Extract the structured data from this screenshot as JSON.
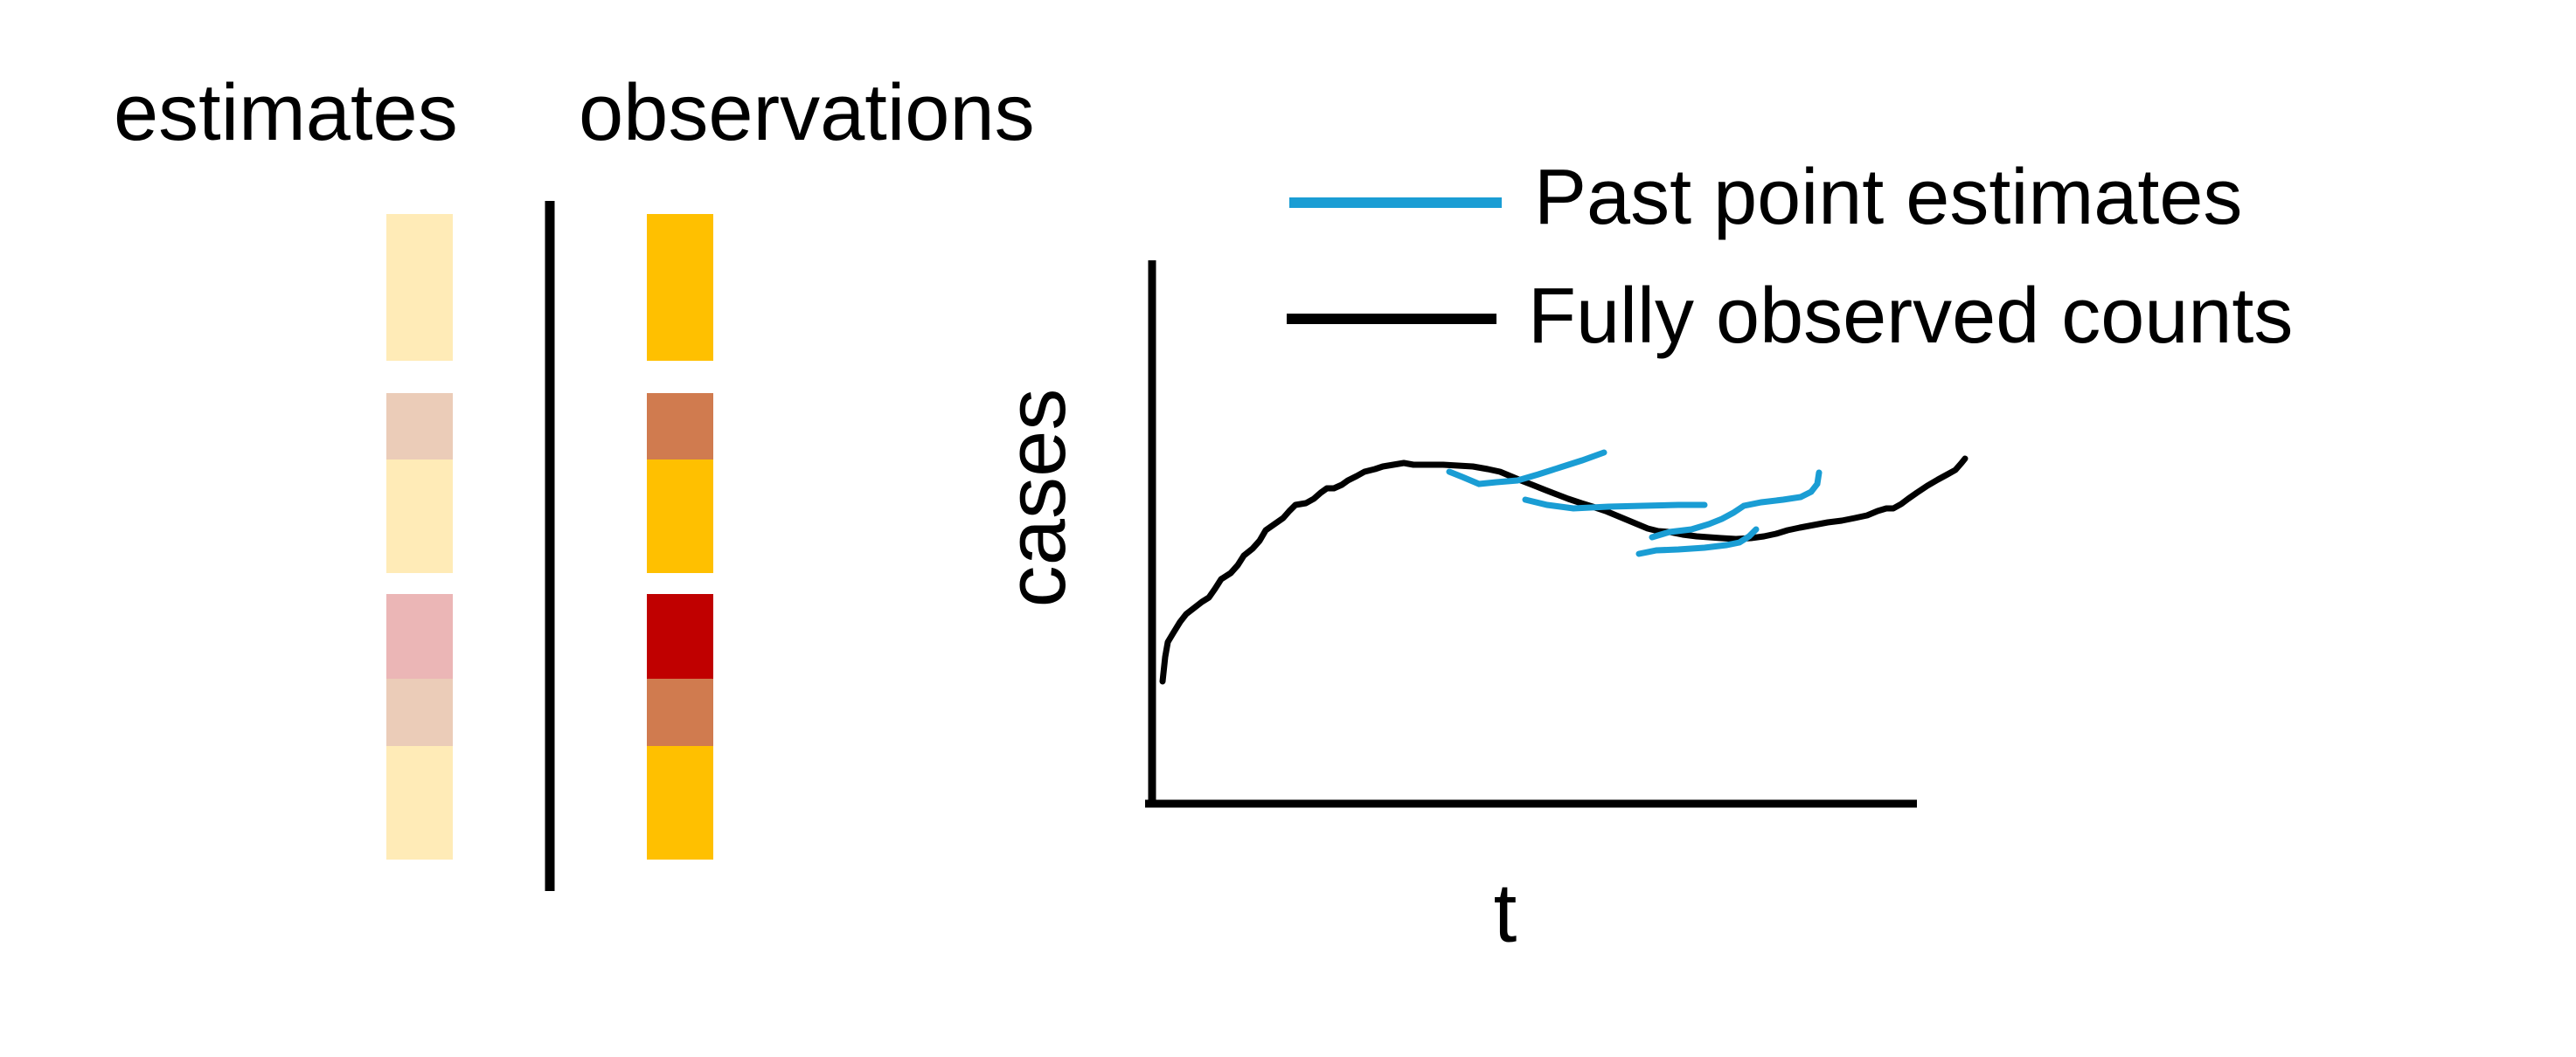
{
  "headers": {
    "estimates": "estimates",
    "observations": "observations"
  },
  "colors": {
    "light_yellow": "#FFEBB7",
    "light_tan": "#EBCCB8",
    "light_pink": "#EBB6B6",
    "gold": "#FFC000",
    "terracotta": "#D07B4F",
    "dark_red": "#C00000",
    "estimate_line": "#1A9DD4",
    "observed_line": "#000000"
  },
  "estimates_column": [
    {
      "color": "light_yellow"
    },
    {
      "color": "light_tan"
    },
    {
      "color": "light_yellow"
    },
    {
      "color": "light_pink"
    },
    {
      "color": "light_tan"
    },
    {
      "color": "light_yellow"
    }
  ],
  "observations_column": [
    {
      "color": "gold"
    },
    {
      "color": "terracotta"
    },
    {
      "color": "gold"
    },
    {
      "color": "dark_red"
    },
    {
      "color": "terracotta"
    },
    {
      "color": "gold"
    }
  ],
  "legend": {
    "estimates_label": "Past point estimates",
    "observed_label": "Fully observed counts"
  },
  "axes": {
    "xlabel": "t",
    "ylabel": "cases"
  }
}
